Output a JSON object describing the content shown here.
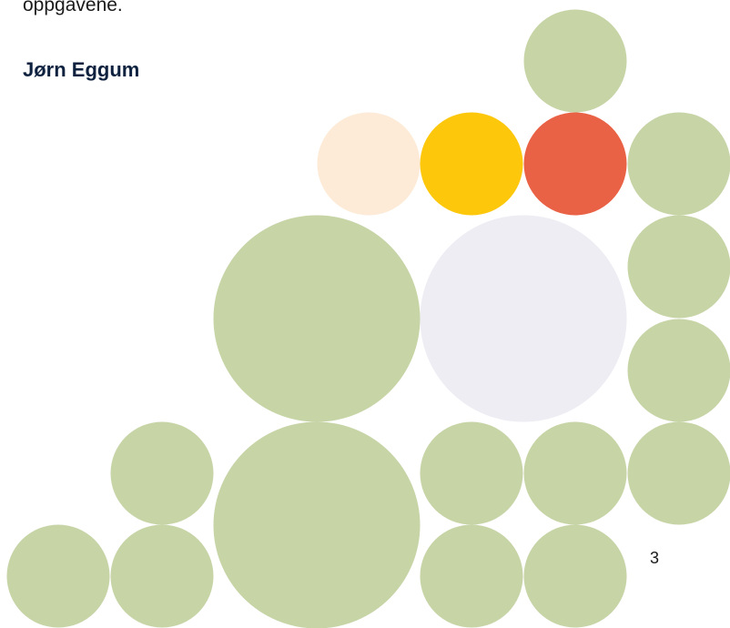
{
  "body_text_fragment": "oppgavene.",
  "author": "Jørn Eggum",
  "page_number": "3"
}
